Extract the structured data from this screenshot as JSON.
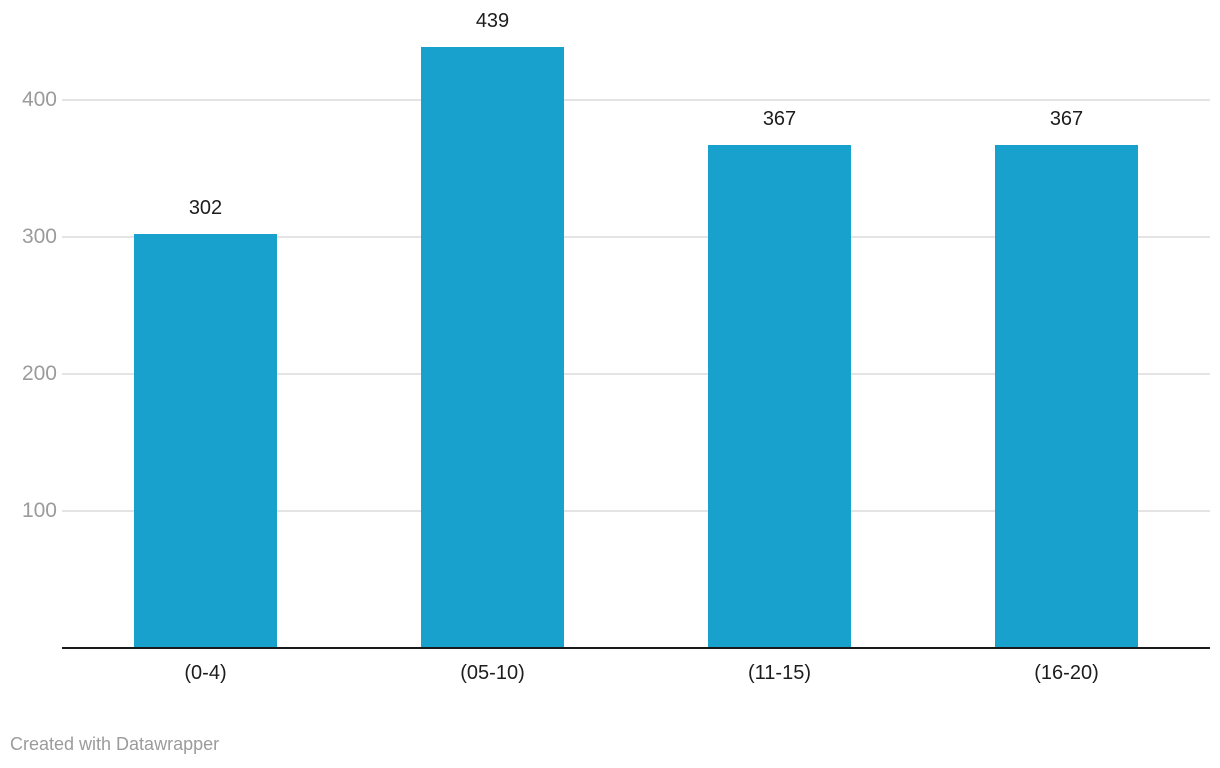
{
  "chart_data": {
    "type": "bar",
    "title": "",
    "xlabel": "",
    "ylabel": "",
    "categories": [
      "(0-4)",
      "(05-10)",
      "(11-15)",
      "(16-20)"
    ],
    "values": [
      302,
      439,
      367,
      367
    ],
    "yticks": [
      100,
      200,
      300,
      400
    ],
    "ylim": [
      0,
      473
    ],
    "grid": true,
    "legend_position": "none",
    "value_labels_shown": true
  },
  "footer": {
    "attribution": "Created with Datawrapper"
  },
  "colors": {
    "bar": "#19a1cd",
    "grid": "#e4e4e4",
    "axis_line": "#1a1a1c",
    "tick_label": "#9b9b9b",
    "value_label": "#1d1d1d",
    "category_label": "#1d1d1d",
    "background": "#ffffff"
  }
}
